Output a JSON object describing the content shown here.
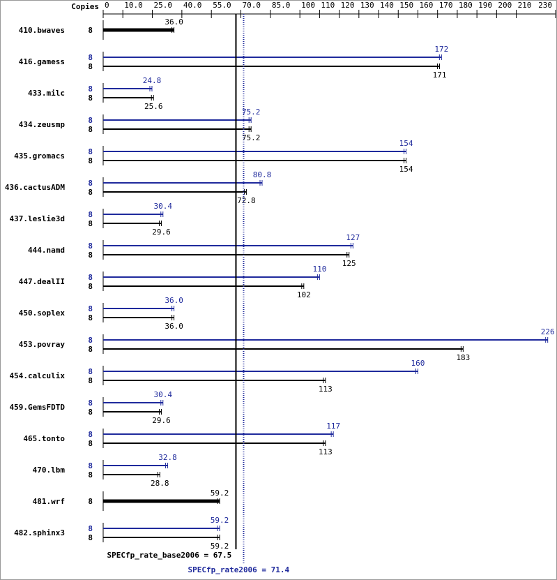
{
  "chart_data": {
    "type": "bar",
    "orientation": "horizontal",
    "x_label": "Copies",
    "categories": [
      "410.bwaves",
      "416.gamess",
      "433.milc",
      "434.zeusmp",
      "435.gromacs",
      "436.cactusADM",
      "437.leslie3d",
      "444.namd",
      "447.dealII",
      "450.soplex",
      "453.povray",
      "454.calculix",
      "459.GemsFDTD",
      "465.tonto",
      "470.lbm",
      "481.wrf",
      "482.sphinx3"
    ],
    "series": [
      {
        "color": "#1f2a9c",
        "values": [
          null,
          172,
          24.8,
          75.2,
          154,
          80.8,
          30.4,
          127,
          110,
          36.0,
          226,
          160,
          30.4,
          117,
          32.8,
          null,
          59.2
        ],
        "value_labels": [
          null,
          "172",
          "24.8",
          "75.2",
          "154",
          "80.8",
          "30.4",
          "127",
          "110",
          "36.0",
          "226",
          "160",
          "30.4",
          "117",
          "32.8",
          null,
          "59.2"
        ],
        "copies": [
          null,
          8,
          8,
          8,
          8,
          8,
          8,
          8,
          8,
          8,
          8,
          8,
          8,
          8,
          8,
          null,
          8
        ]
      },
      {
        "color": "#000000",
        "values": [
          36.0,
          171,
          25.6,
          75.2,
          154,
          72.8,
          29.6,
          125,
          102,
          36.0,
          183,
          113,
          29.6,
          113,
          28.8,
          59.2,
          59.2
        ],
        "value_labels": [
          "36.0",
          "171",
          "25.6",
          "75.2",
          "154",
          "72.8",
          "29.6",
          "125",
          "102",
          "36.0",
          "183",
          "113",
          "29.6",
          "113",
          "28.8",
          "59.2",
          "59.2"
        ],
        "copies": [
          8,
          8,
          8,
          8,
          8,
          8,
          8,
          8,
          8,
          8,
          8,
          8,
          8,
          8,
          8,
          8,
          8
        ]
      }
    ],
    "xlim": [
      0,
      230
    ],
    "xticks": [
      0,
      {
        "value": 10,
        "label": "10.0"
      },
      {
        "value": 25,
        "label": "25.0"
      },
      {
        "value": 40,
        "label": "40.0"
      },
      {
        "value": 55,
        "label": "55.0"
      },
      {
        "value": 70,
        "label": "70.0"
      },
      {
        "value": 85,
        "label": "85.0"
      },
      100,
      110,
      120,
      130,
      140,
      150,
      160,
      170,
      180,
      190,
      200,
      210,
      230
    ],
    "reference_lines": [
      {
        "value": 67.5,
        "label": "SPECfp_rate_base2006 = 67.5",
        "color": "#000000",
        "style": "solid"
      },
      {
        "value": 71.4,
        "label": "SPECfp_rate2006 = 71.4",
        "color": "#1f2a9c",
        "style": "dotted"
      }
    ]
  }
}
